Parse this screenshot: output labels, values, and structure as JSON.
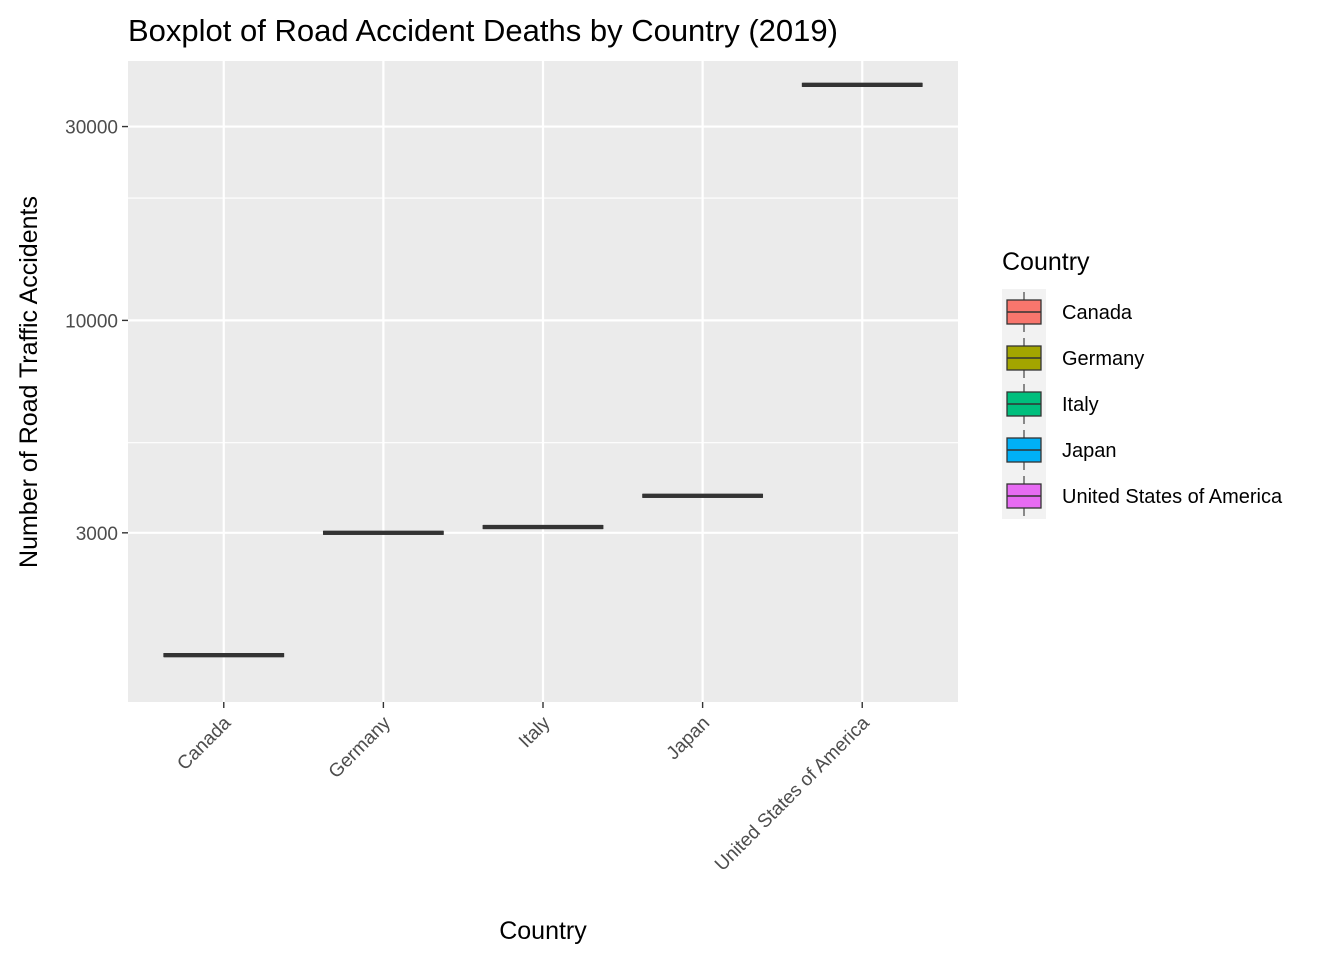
{
  "chart_data": {
    "type": "boxplot",
    "title": "Boxplot of Road Accident Deaths by Country (2019)",
    "xlabel": "Country",
    "ylabel": "Number of Road Traffic Accidents",
    "y_scale": "log10",
    "ylim": [
      1150,
      43500
    ],
    "y_ticks": [
      3000,
      10000,
      30000
    ],
    "y_tick_labels": [
      "3000",
      "10000",
      "30000"
    ],
    "y_minor_ticks": [
      1000,
      5000,
      20000
    ],
    "categories": [
      "Canada",
      "Germany",
      "Italy",
      "Japan",
      "United States of America"
    ],
    "values": [
      1500,
      3000,
      3100,
      3700,
      38000
    ],
    "colors": [
      "#F8766D",
      "#A3A500",
      "#00BF7D",
      "#00B0F6",
      "#E76BF3"
    ],
    "panel_background": "#EBEBEB",
    "grid": true,
    "legend": {
      "title": "Country",
      "position": "right",
      "entries": [
        "Canada",
        "Germany",
        "Italy",
        "Japan",
        "United States of America"
      ]
    }
  }
}
